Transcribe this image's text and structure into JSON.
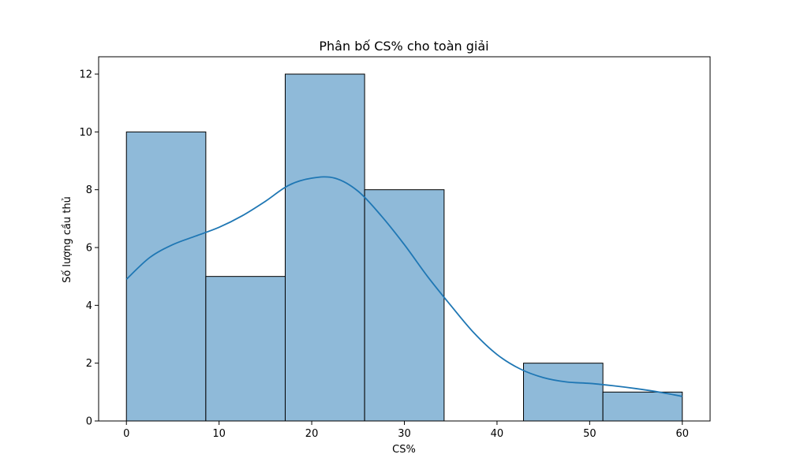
{
  "chart_data": {
    "type": "bar",
    "title": "Phân bố CS% cho toàn giải",
    "xlabel": "CS%",
    "ylabel": "Số lượng cầu thủ",
    "xlim": [
      -3,
      63
    ],
    "ylim": [
      0,
      12.6
    ],
    "xticks": [
      0,
      10,
      20,
      30,
      40,
      50,
      60
    ],
    "yticks": [
      0,
      2,
      4,
      6,
      8,
      10,
      12
    ],
    "bins": [
      {
        "x0": 0,
        "x1": 8.57,
        "count": 10
      },
      {
        "x0": 8.57,
        "x1": 17.14,
        "count": 5
      },
      {
        "x0": 17.14,
        "x1": 25.71,
        "count": 12
      },
      {
        "x0": 25.71,
        "x1": 34.29,
        "count": 8
      },
      {
        "x0": 34.29,
        "x1": 42.86,
        "count": 0
      },
      {
        "x0": 42.86,
        "x1": 51.43,
        "count": 2
      },
      {
        "x0": 51.43,
        "x1": 60,
        "count": 1
      }
    ],
    "kde": {
      "x": [
        0,
        2.5,
        5,
        7.5,
        10,
        12.5,
        15,
        17.5,
        20,
        22.5,
        25,
        27.5,
        30,
        32.5,
        35,
        37.5,
        40,
        42.5,
        45,
        47.5,
        50,
        52.5,
        55,
        57.5,
        60
      ],
      "y": [
        4.9,
        5.65,
        6.1,
        6.4,
        6.7,
        7.1,
        7.6,
        8.15,
        8.4,
        8.4,
        7.95,
        7.1,
        6.1,
        5.0,
        4.0,
        3.05,
        2.3,
        1.8,
        1.5,
        1.35,
        1.3,
        1.22,
        1.12,
        1.0,
        0.85
      ]
    },
    "colors": {
      "bar_fill": "#8fbad9",
      "bar_edge": "#000000",
      "line": "#1f77b4"
    },
    "grid": false,
    "legend": "none"
  }
}
